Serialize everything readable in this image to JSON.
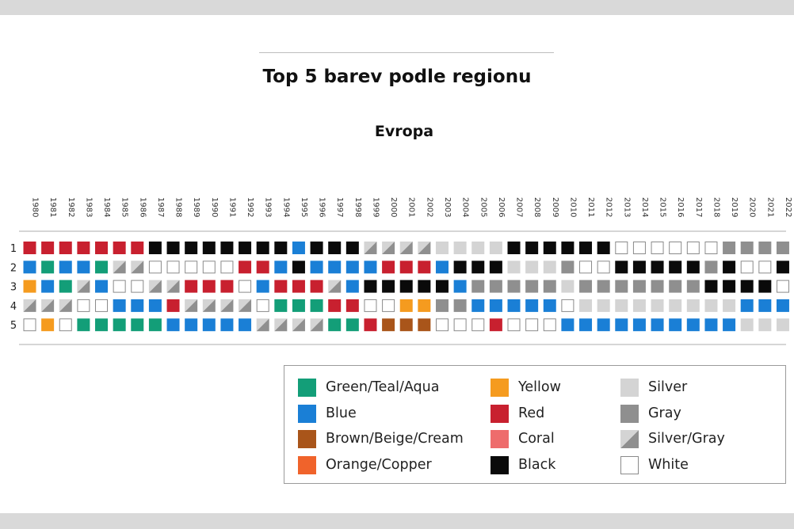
{
  "title": "Top 5 barev podle regionu",
  "subtitle": "Evropa",
  "colors": {
    "G": "#139e78",
    "B": "#1a7fd6",
    "N": "#a9551a",
    "O": "#f0632b",
    "Y": "#f59b1f",
    "R": "#c8202f",
    "C": "#ee6c6c",
    "K": "#0a0a0a",
    "S": "#d4d4d4",
    "A": "#8f8f8f",
    "M": "silver-gray-split",
    "W": "#ffffff"
  },
  "legend": [
    {
      "code": "G",
      "label": "Green/Teal/Aqua"
    },
    {
      "code": "B",
      "label": "Blue"
    },
    {
      "code": "N",
      "label": "Brown/Beige/Cream"
    },
    {
      "code": "O",
      "label": "Orange/Copper"
    },
    {
      "code": "Y",
      "label": "Yellow"
    },
    {
      "code": "R",
      "label": "Red"
    },
    {
      "code": "C",
      "label": "Coral"
    },
    {
      "code": "K",
      "label": "Black"
    },
    {
      "code": "S",
      "label": "Silver"
    },
    {
      "code": "A",
      "label": "Gray"
    },
    {
      "code": "M",
      "label": "Silver/Gray"
    },
    {
      "code": "W",
      "label": "White"
    }
  ],
  "chart_data": {
    "type": "table",
    "title": "Top 5 barev podle regionu",
    "subtitle": "Evropa",
    "years": [
      "1980",
      "1981",
      "1982",
      "1983",
      "1984",
      "1985",
      "1986",
      "1987",
      "1988",
      "1989",
      "1990",
      "1991",
      "1992",
      "1993",
      "1994",
      "1995",
      "1996",
      "1997",
      "1998",
      "1999",
      "2000",
      "2001",
      "2002",
      "2003",
      "2004",
      "2005",
      "2006",
      "2007",
      "2008",
      "2009",
      "2010",
      "2011",
      "2012",
      "2013",
      "2014",
      "2015",
      "2016",
      "2017",
      "2018",
      "2019",
      "2020",
      "2021",
      "2022"
    ],
    "ranks": [
      "1",
      "2",
      "3",
      "4",
      "5"
    ],
    "rows": [
      [
        "R",
        "R",
        "R",
        "R",
        "R",
        "R",
        "R",
        "K",
        "K",
        "K",
        "K",
        "K",
        "K",
        "K",
        "K",
        "B",
        "K",
        "K",
        "K",
        "M",
        "M",
        "M",
        "M",
        "S",
        "S",
        "S",
        "S",
        "K",
        "K",
        "K",
        "K",
        "K",
        "K",
        "W",
        "W",
        "W",
        "W",
        "W",
        "W",
        "A",
        "A",
        "A",
        "A"
      ],
      [
        "B",
        "G",
        "B",
        "B",
        "G",
        "M",
        "M",
        "W",
        "W",
        "W",
        "W",
        "W",
        "R",
        "R",
        "B",
        "K",
        "B",
        "B",
        "B",
        "B",
        "R",
        "R",
        "R",
        "B",
        "K",
        "K",
        "K",
        "S",
        "S",
        "S",
        "A",
        "W",
        "W",
        "K",
        "K",
        "K",
        "K",
        "K",
        "A",
        "K",
        "W",
        "W",
        "K"
      ],
      [
        "Y",
        "B",
        "G",
        "M",
        "B",
        "W",
        "W",
        "M",
        "M",
        "R",
        "R",
        "R",
        "W",
        "B",
        "R",
        "R",
        "R",
        "M",
        "B",
        "K",
        "K",
        "K",
        "K",
        "K",
        "B",
        "A",
        "A",
        "A",
        "A",
        "A",
        "S",
        "A",
        "A",
        "A",
        "A",
        "A",
        "A",
        "A",
        "K",
        "K",
        "K",
        "K",
        "W"
      ],
      [
        "M",
        "M",
        "M",
        "W",
        "W",
        "B",
        "B",
        "B",
        "R",
        "M",
        "M",
        "M",
        "M",
        "W",
        "G",
        "G",
        "G",
        "R",
        "R",
        "W",
        "W",
        "Y",
        "Y",
        "A",
        "A",
        "B",
        "B",
        "B",
        "B",
        "B",
        "W",
        "S",
        "S",
        "S",
        "S",
        "S",
        "S",
        "S",
        "S",
        "S",
        "B",
        "B",
        "B"
      ],
      [
        "W",
        "Y",
        "W",
        "G",
        "G",
        "G",
        "G",
        "G",
        "B",
        "B",
        "B",
        "B",
        "B",
        "M",
        "M",
        "M",
        "M",
        "G",
        "G",
        "R",
        "N",
        "N",
        "N",
        "W",
        "W",
        "W",
        "R",
        "W",
        "W",
        "W",
        "B",
        "B",
        "B",
        "B",
        "B",
        "B",
        "B",
        "B",
        "B",
        "B",
        "S",
        "S",
        "S"
      ]
    ],
    "legend_placement": "bottom-right"
  }
}
